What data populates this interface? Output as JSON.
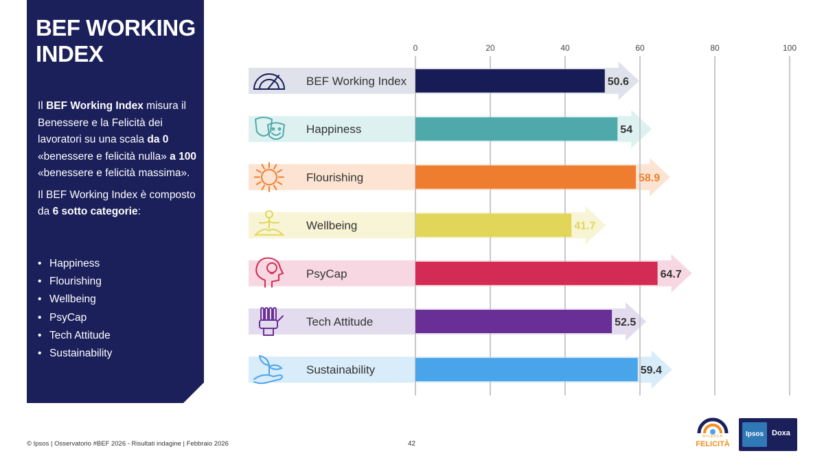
{
  "side": {
    "title_line1": "BEF WORKING",
    "title_line2": "INDEX",
    "desc1": [
      {
        "t": "Il ",
        "b": false
      },
      {
        "t": "BEF Working Index",
        "b": true
      },
      {
        "t": " misura il Benessere e la Felicità dei lavoratori su una scala ",
        "b": false
      },
      {
        "t": "da 0",
        "b": true
      },
      {
        "t": " «benessere e felicità nulla» ",
        "b": false
      },
      {
        "t": "a 100",
        "b": true
      },
      {
        "t": " «benessere e felicità massima».",
        "b": false
      }
    ],
    "desc2": [
      {
        "t": "Il BEF Working Index è composto da ",
        "b": false
      },
      {
        "t": "6 sotto categorie",
        "b": true
      },
      {
        "t": ":",
        "b": false
      }
    ],
    "list": [
      "Happiness",
      "Flourishing",
      "Wellbeing",
      "PsyCap",
      "Tech Attitude",
      "Sustainability"
    ]
  },
  "chart_data": {
    "type": "bar",
    "orientation": "horizontal",
    "categories": [
      "BEF Working Index",
      "Happiness",
      "Flourishing",
      "Wellbeing",
      "PsyCap",
      "Tech Attitude",
      "Sustainability"
    ],
    "values": [
      50.6,
      54,
      58.9,
      41.7,
      64.7,
      52.5,
      59.4
    ],
    "value_labels": [
      "50.6",
      "54",
      "58.9",
      "41.7",
      "64.7",
      "52.5",
      "59.4"
    ],
    "xlim": [
      0,
      100
    ],
    "xticks": [
      0,
      20,
      40,
      60,
      80,
      100
    ],
    "xtick_labels": [
      "0",
      "20",
      "40",
      "60",
      "80",
      "100"
    ],
    "axis_position": "top",
    "grid": true,
    "bar_colors": [
      "#171c57",
      "#4fa9aa",
      "#ef7d2f",
      "#e1d65a",
      "#d42b55",
      "#6a2f96",
      "#4aa4ea"
    ],
    "arrow_colors": [
      "#dfe2ea",
      "#def1f1",
      "#fde4d2",
      "#f8f4d6",
      "#f7d8e2",
      "#e3dbee",
      "#d8ecfa"
    ],
    "value_label_colors": [
      "#333333",
      "#333333",
      "#ef7d2f",
      "#e1d65a",
      "#333333",
      "#333333",
      "#333333"
    ],
    "icons": [
      "gauge-icon",
      "theater-masks-icon",
      "sun-icon",
      "meditation-icon",
      "head-lightbulb-icon",
      "robot-hand-icon",
      "plant-hand-icon"
    ]
  },
  "footer": {
    "text": "© Ipsos | Osservatorio #BEF 2026 - Risultati indagine | Febbraio 2026",
    "page": "42"
  },
  "logos": {
    "felicita_small": "RICERCA",
    "felicita_word": "FELICITÀ",
    "ipsos": "Ipsos",
    "doxa": "Doxa"
  }
}
